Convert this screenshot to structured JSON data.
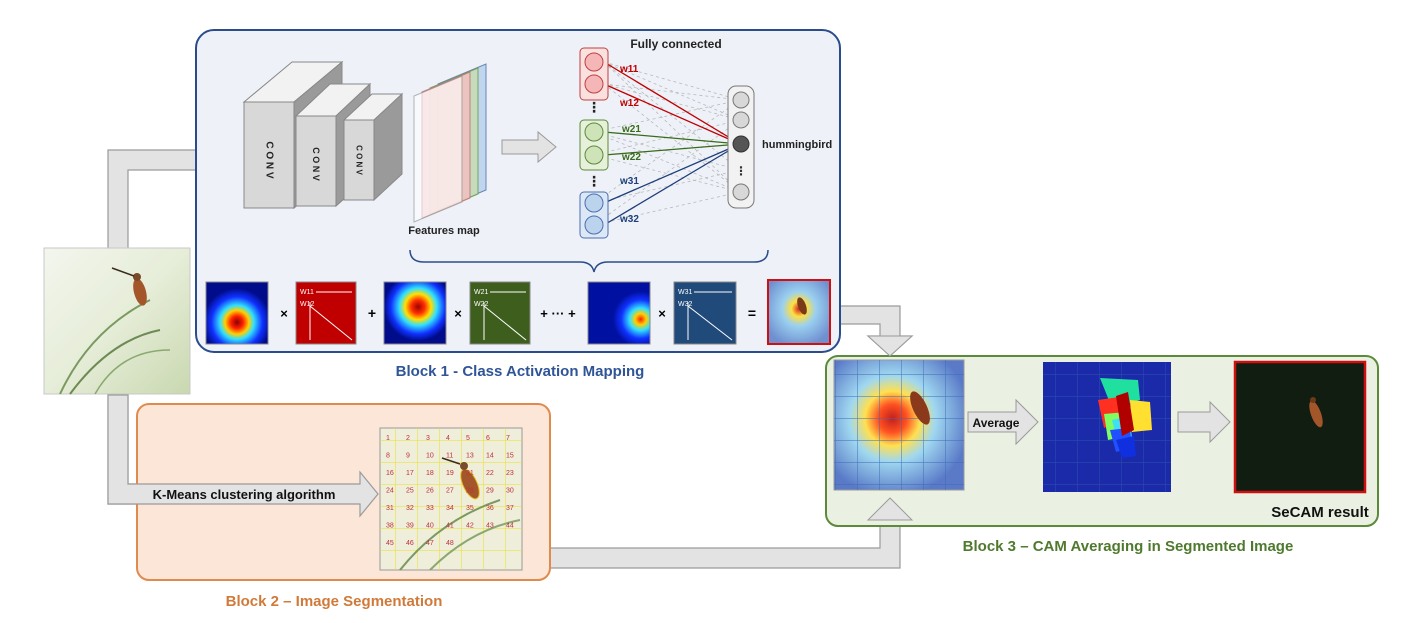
{
  "block1": {
    "title": "Block 1 - Class Activation Mapping",
    "conv_labels": [
      "C O N V",
      "C O N V",
      "C O N V"
    ],
    "features_label": "Features map",
    "fc_label": "Fully connected",
    "output_label": "hummingbird",
    "weights": [
      "w11",
      "w12",
      "w21",
      "w22",
      "w31",
      "w32"
    ],
    "formula_ops": [
      "×",
      "+",
      "×",
      "+ ··· +",
      "×",
      "="
    ],
    "matrix_labels": [
      [
        "W11",
        "W12"
      ],
      [
        "W21",
        "W22"
      ],
      [
        "W31",
        "W32"
      ]
    ]
  },
  "block2": {
    "title": "Block 2 – Image Segmentation",
    "arrow_label": "K-Means clustering algorithm",
    "segment_numbers": [
      "1",
      "2",
      "3",
      "4",
      "5",
      "6",
      "7",
      "8",
      "9",
      "10",
      "11",
      "13",
      "14",
      "15",
      "16",
      "17",
      "18",
      "19",
      "21",
      "22",
      "23",
      "24",
      "25",
      "26",
      "27",
      "28",
      "29",
      "30",
      "31",
      "32",
      "33",
      "34",
      "35",
      "36",
      "37",
      "38",
      "39",
      "40",
      "41",
      "42",
      "43",
      "44",
      "45",
      "46",
      "47",
      "48"
    ]
  },
  "block3": {
    "title": "Block 3 – CAM Averaging in Segmented Image",
    "average_label": "Average",
    "result_label": "SeCAM result"
  },
  "colors": {
    "block1_border": "#2b4c8c",
    "block1_bg": "#eef2f8",
    "block1_title": "#2f5597",
    "block2_border": "#e08a4e",
    "block2_bg": "#fbe6d8",
    "block2_title": "#d07a3a",
    "block3_border": "#5a8a3a",
    "block3_bg": "#eaf1e2",
    "block3_title": "#4f7a2e",
    "red_neuron": "#f4b6b6",
    "green_neuron": "#cfe3b8",
    "blue_neuron": "#bcd3ee"
  }
}
